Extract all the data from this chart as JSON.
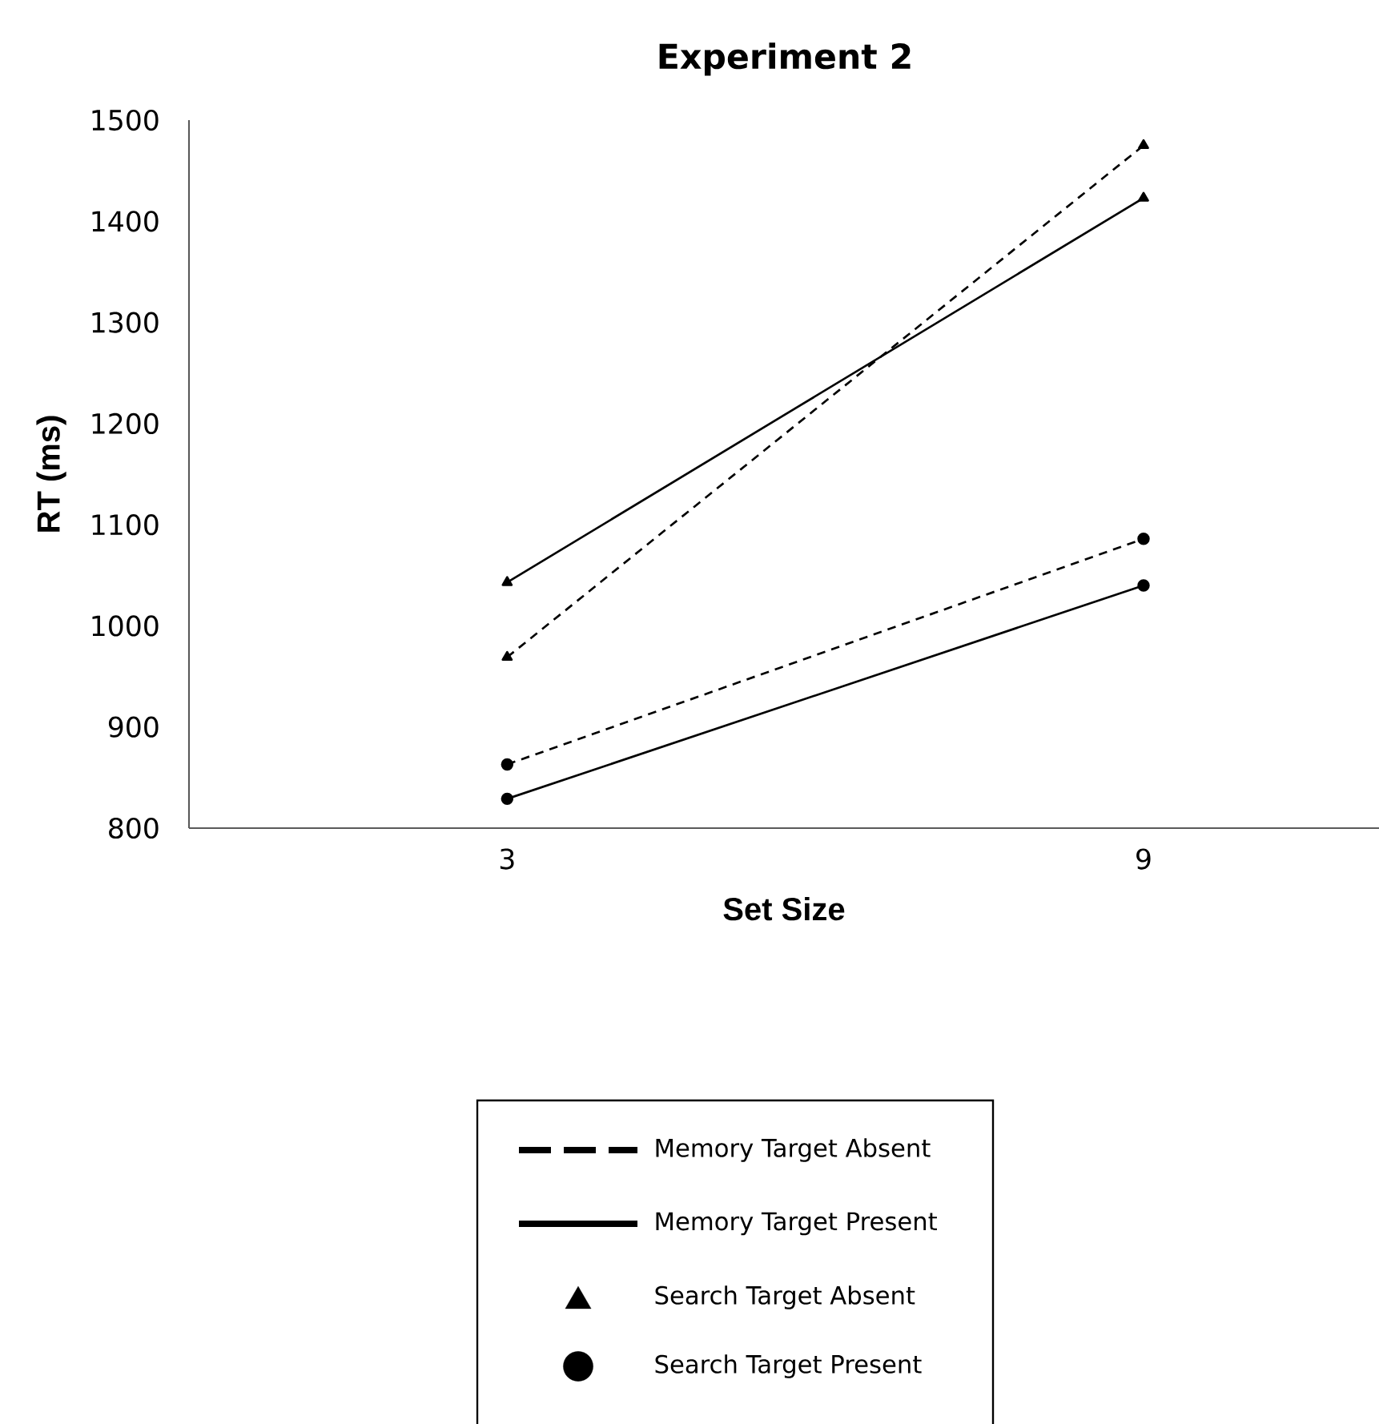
{
  "chart_data": {
    "type": "line",
    "title": "Experiment 2",
    "xlabel": "Set Size",
    "ylabel": "RT (ms)",
    "categories": [
      "3",
      "9"
    ],
    "series": [
      {
        "color": "#000000",
        "line_style": "dashed",
        "marker": "triangle",
        "values": [
          969,
          1475
        ]
      },
      {
        "color": "#000000",
        "line_style": "solid",
        "marker": "triangle",
        "values": [
          1043,
          1423
        ]
      },
      {
        "color": "#000000",
        "line_style": "dashed",
        "marker": "circle",
        "values": [
          863,
          1086
        ]
      },
      {
        "color": "#000000",
        "line_style": "solid",
        "marker": "circle",
        "values": [
          829,
          1040
        ]
      }
    ],
    "ylim": [
      800,
      1500
    ],
    "yticks": [
      800,
      900,
      1000,
      1100,
      1200,
      1300,
      1400,
      1500
    ],
    "grid": false,
    "annotations": [
      "Memory Target Absent",
      "Memory Target Present",
      "Search Target Absent",
      "Search Target Present"
    ]
  }
}
